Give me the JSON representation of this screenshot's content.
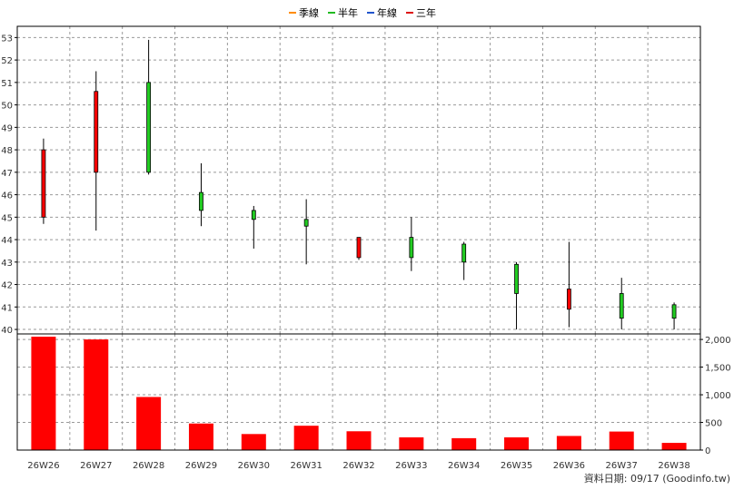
{
  "legend": {
    "items": [
      {
        "label": "季線",
        "color": "#ff8c00"
      },
      {
        "label": "半年",
        "color": "#22bb22"
      },
      {
        "label": "年線",
        "color": "#2255cc"
      },
      {
        "label": "三年",
        "color": "#dd1111"
      }
    ]
  },
  "credit": "資料日期: 09/17  (Goodinfo.tw)",
  "chart_data": [
    {
      "type": "candlestick",
      "categories": [
        "26W26",
        "26W27",
        "26W28",
        "26W29",
        "26W30",
        "26W31",
        "26W32",
        "26W33",
        "26W34",
        "26W35",
        "26W36",
        "26W37",
        "26W38"
      ],
      "open": [
        48.0,
        50.6,
        47.0,
        45.3,
        44.9,
        44.6,
        44.1,
        43.2,
        43.0,
        41.6,
        41.8,
        40.5,
        40.5
      ],
      "high": [
        48.5,
        51.5,
        52.9,
        47.4,
        45.5,
        45.8,
        44.1,
        45.0,
        43.9,
        43.0,
        43.9,
        42.3,
        41.2
      ],
      "low": [
        44.7,
        44.4,
        46.9,
        44.6,
        43.6,
        42.9,
        43.1,
        42.6,
        42.2,
        40.0,
        40.1,
        40.0,
        40.0
      ],
      "close": [
        45.0,
        47.0,
        51.0,
        46.1,
        45.3,
        44.9,
        43.2,
        44.1,
        43.8,
        42.9,
        40.9,
        41.6,
        41.1
      ],
      "up_color": "#22cc22",
      "down_color": "#ff0000",
      "ylim": [
        39.8,
        53.5
      ],
      "yticks": [
        40,
        41,
        42,
        43,
        44,
        45,
        46,
        47,
        48,
        49,
        50,
        51,
        52,
        53
      ]
    },
    {
      "type": "bar",
      "categories": [
        "26W26",
        "26W27",
        "26W28",
        "26W29",
        "26W30",
        "26W31",
        "26W32",
        "26W33",
        "26W34",
        "26W35",
        "26W36",
        "26W37",
        "26W38"
      ],
      "values": [
        2050,
        2000,
        960,
        480,
        290,
        440,
        340,
        230,
        215,
        230,
        255,
        335,
        130
      ],
      "color": "#ff0000",
      "ylim": [
        0,
        2100
      ],
      "yticks": [
        0,
        500,
        1000,
        1500,
        2000
      ],
      "ytick_labels": [
        "0",
        "500",
        "1,000",
        "1,500",
        "2,000"
      ]
    }
  ]
}
